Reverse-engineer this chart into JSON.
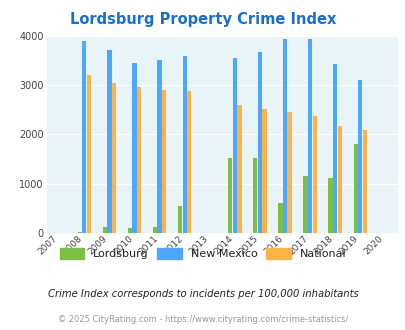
{
  "title": "Lordsburg Property Crime Index",
  "years": [
    2007,
    2008,
    2009,
    2010,
    2011,
    2012,
    2013,
    2014,
    2015,
    2016,
    2017,
    2018,
    2019,
    2020
  ],
  "lordsburg": [
    null,
    20,
    120,
    90,
    110,
    550,
    null,
    1520,
    1530,
    610,
    1160,
    1110,
    1800,
    null
  ],
  "new_mexico": [
    null,
    3900,
    3720,
    3460,
    3520,
    3600,
    null,
    3550,
    3680,
    3950,
    3950,
    3430,
    3100,
    null
  ],
  "national": [
    null,
    3220,
    3050,
    2960,
    2910,
    2880,
    null,
    2600,
    2510,
    2460,
    2380,
    2180,
    2100,
    null
  ],
  "lordsburg_color": "#7bc043",
  "new_mexico_color": "#4da6ff",
  "national_color": "#ffb347",
  "bg_color": "#e8f4f8",
  "title_color": "#1a6fcc",
  "ylim": [
    0,
    4000
  ],
  "yticks": [
    0,
    1000,
    2000,
    3000,
    4000
  ],
  "subtitle": "Crime Index corresponds to incidents per 100,000 inhabitants",
  "footer": "© 2025 CityRating.com - https://www.cityrating.com/crime-statistics/",
  "bar_width": 0.55
}
